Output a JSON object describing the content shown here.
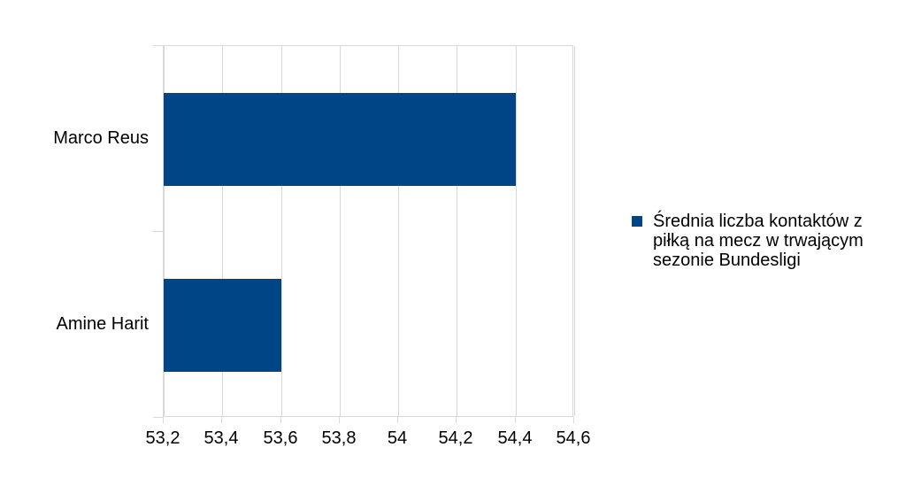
{
  "chart_data": {
    "type": "bar",
    "orientation": "horizontal",
    "title": "",
    "xlabel": "",
    "ylabel": "",
    "categories": [
      "Marco Reus",
      "Amine Harit"
    ],
    "series": [
      {
        "name": "Średnia liczba kontaktów z piłką na mecz w trwającym sezonie Bundesligi",
        "values": [
          54.4,
          53.6
        ]
      }
    ],
    "xlim": [
      53.2,
      54.6
    ],
    "xtick_values": [
      53.2,
      53.4,
      53.6,
      53.8,
      54.0,
      54.2,
      54.4,
      54.6
    ],
    "xtick_labels": [
      "53,2",
      "53,4",
      "53,6",
      "53,8",
      "54",
      "54,2",
      "54,4",
      "54,6"
    ],
    "grid": "vertical-only",
    "legend_position": "right"
  },
  "legend": {
    "lines": [
      "Średnia liczba kontaktów z",
      "piłką na mecz w trwającym",
      "sezonie Bundesligi"
    ]
  },
  "colors": {
    "bar": "#004586",
    "grid": "#d9d9d9",
    "axis_border": "#d9d9d9",
    "text": "#000000",
    "background": "#ffffff"
  }
}
